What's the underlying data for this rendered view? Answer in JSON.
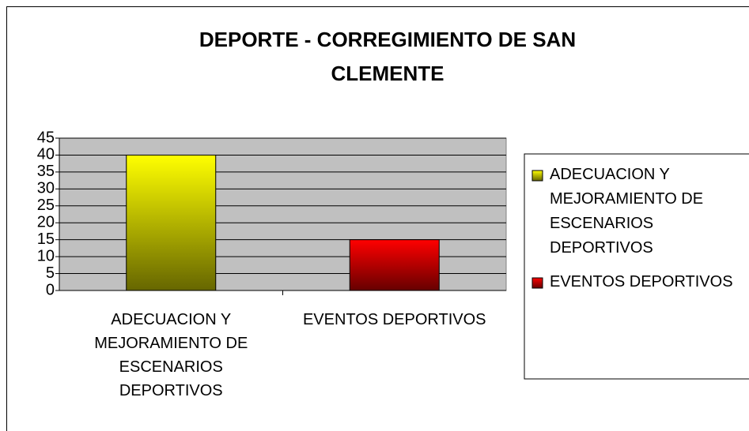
{
  "chart_data": {
    "type": "bar",
    "title": "DEPORTE - CORREGIMIENTO DE SAN CLEMENTE",
    "categories": [
      "ADECUACION Y MEJORAMIENTO DE ESCENARIOS DEPORTIVOS",
      "EVENTOS DEPORTIVOS"
    ],
    "values": [
      40,
      15
    ],
    "colors": [
      "#ffff00",
      "#ff0000"
    ],
    "ylim": [
      0,
      45
    ],
    "yticks": [
      0,
      5,
      10,
      15,
      20,
      25,
      30,
      35,
      40,
      45
    ],
    "grid": true,
    "legend": "right"
  }
}
